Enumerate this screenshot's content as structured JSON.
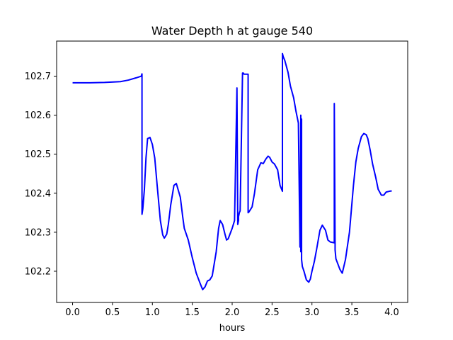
{
  "chart_data": {
    "type": "line",
    "title": "Water Depth h at gauge 540",
    "xlabel": "hours",
    "ylabel": "",
    "xlim": [
      -0.2,
      4.2
    ],
    "ylim": [
      102.12,
      102.79
    ],
    "x_ticks": [
      0.0,
      0.5,
      1.0,
      1.5,
      2.0,
      2.5,
      3.0,
      3.5,
      4.0
    ],
    "x_tick_labels": [
      "0.0",
      "0.5",
      "1.0",
      "1.5",
      "2.0",
      "2.5",
      "3.0",
      "3.5",
      "4.0"
    ],
    "y_ticks": [
      102.2,
      102.3,
      102.4,
      102.5,
      102.6,
      102.7
    ],
    "y_tick_labels": [
      "102.2",
      "102.3",
      "102.4",
      "102.5",
      "102.6",
      "102.7"
    ],
    "grid": false,
    "series": [
      {
        "color": "#0000ff",
        "x": [
          0.0,
          0.2,
          0.4,
          0.6,
          0.7,
          0.8,
          0.86,
          0.87,
          0.87,
          0.88,
          0.9,
          0.92,
          0.94,
          0.97,
          1.0,
          1.03,
          1.06,
          1.1,
          1.13,
          1.15,
          1.18,
          1.2,
          1.23,
          1.27,
          1.3,
          1.35,
          1.38,
          1.4,
          1.45,
          1.5,
          1.55,
          1.6,
          1.63,
          1.66,
          1.69,
          1.72,
          1.75,
          1.8,
          1.83,
          1.85,
          1.88,
          1.91,
          1.93,
          1.95,
          2.0,
          2.03,
          2.06,
          2.07,
          2.08,
          2.08,
          2.09,
          2.1,
          2.13,
          2.14,
          2.15,
          2.2,
          2.2,
          2.21,
          2.25,
          2.28,
          2.32,
          2.36,
          2.39,
          2.42,
          2.45,
          2.47,
          2.5,
          2.53,
          2.57,
          2.6,
          2.63,
          2.63,
          2.64,
          2.66,
          2.7,
          2.73,
          2.77,
          2.8,
          2.83,
          2.85,
          2.86,
          2.86,
          2.87,
          2.87,
          2.88,
          2.9,
          2.93,
          2.96,
          2.98,
          3.0,
          3.03,
          3.06,
          3.1,
          3.13,
          3.17,
          3.2,
          3.23,
          3.28,
          3.28,
          3.29,
          3.29,
          3.3,
          3.35,
          3.38,
          3.42,
          3.47,
          3.52,
          3.55,
          3.58,
          3.62,
          3.65,
          3.68,
          3.7,
          3.73,
          3.76,
          3.8,
          3.83,
          3.87,
          3.9,
          3.93,
          3.97,
          4.0
        ],
        "y": [
          102.683,
          102.683,
          102.684,
          102.686,
          102.69,
          102.696,
          102.7,
          102.706,
          102.346,
          102.36,
          102.41,
          102.49,
          102.54,
          102.543,
          102.525,
          102.49,
          102.42,
          102.33,
          102.293,
          102.285,
          102.295,
          102.32,
          102.37,
          102.42,
          102.425,
          102.39,
          102.34,
          102.31,
          102.28,
          102.235,
          102.195,
          102.168,
          102.153,
          102.16,
          102.175,
          102.178,
          102.188,
          102.25,
          102.31,
          102.33,
          102.32,
          102.295,
          102.28,
          102.283,
          102.31,
          102.33,
          102.67,
          102.32,
          102.33,
          102.34,
          102.35,
          102.355,
          102.708,
          102.708,
          102.705,
          102.705,
          102.35,
          102.352,
          102.365,
          102.4,
          102.46,
          102.478,
          102.476,
          102.487,
          102.495,
          102.492,
          102.48,
          102.475,
          102.46,
          102.42,
          102.405,
          102.758,
          102.75,
          102.74,
          102.71,
          102.675,
          102.645,
          102.61,
          102.58,
          102.262,
          102.6,
          102.25,
          102.59,
          102.23,
          102.212,
          102.2,
          102.178,
          102.172,
          102.18,
          102.2,
          102.225,
          102.258,
          102.305,
          102.318,
          102.305,
          102.28,
          102.275,
          102.273,
          102.63,
          102.27,
          102.255,
          102.232,
          102.205,
          102.195,
          102.23,
          102.3,
          102.42,
          102.48,
          102.515,
          102.545,
          102.553,
          102.55,
          102.54,
          102.51,
          102.475,
          102.44,
          102.41,
          102.395,
          102.395,
          102.403,
          102.405,
          102.406
        ]
      }
    ]
  }
}
